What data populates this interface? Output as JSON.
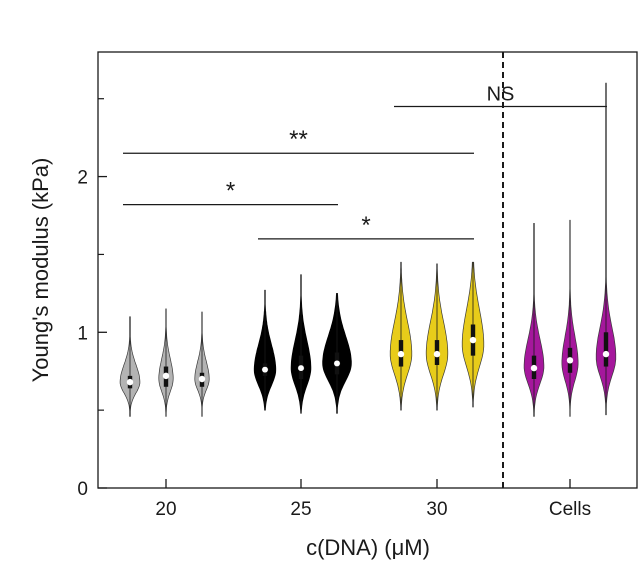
{
  "chart_data": {
    "type": "violin",
    "xlabel": "c(DNA) (μM)",
    "ylabel": "Young's modulus (kPa)",
    "ylim": [
      0,
      2.8
    ],
    "yticks_major": [
      0,
      1,
      2
    ],
    "yticks_minor": [
      0.5,
      1.5,
      2.5
    ],
    "groups": [
      {
        "label": "20",
        "color": "#b3b3b3",
        "violins": [
          {
            "median": 0.68,
            "q1": 0.64,
            "q3": 0.72,
            "min": 0.46,
            "max": 1.1,
            "mode": 0.68,
            "spread": 0.07,
            "width": 0.55
          },
          {
            "median": 0.72,
            "q1": 0.65,
            "q3": 0.78,
            "min": 0.46,
            "max": 1.15,
            "mode": 0.7,
            "spread": 0.08,
            "width": 0.4
          },
          {
            "median": 0.7,
            "q1": 0.65,
            "q3": 0.74,
            "min": 0.46,
            "max": 1.13,
            "mode": 0.7,
            "spread": 0.07,
            "width": 0.4
          }
        ]
      },
      {
        "label": "25",
        "color": "#000000",
        "violins": [
          {
            "median": 0.76,
            "q1": 0.72,
            "q3": 0.8,
            "min": 0.5,
            "max": 1.27,
            "mode": 0.76,
            "spread": 0.1,
            "width": 0.6
          },
          {
            "median": 0.77,
            "q1": 0.7,
            "q3": 0.85,
            "min": 0.48,
            "max": 1.37,
            "mode": 0.77,
            "spread": 0.11,
            "width": 0.55
          },
          {
            "median": 0.8,
            "q1": 0.73,
            "q3": 0.87,
            "min": 0.48,
            "max": 1.25,
            "mode": 0.8,
            "spread": 0.11,
            "width": 0.8
          }
        ]
      },
      {
        "label": "30",
        "color": "#e8cc1a",
        "violins": [
          {
            "median": 0.86,
            "q1": 0.78,
            "q3": 0.95,
            "min": 0.5,
            "max": 1.45,
            "mode": 0.86,
            "spread": 0.13,
            "width": 0.6
          },
          {
            "median": 0.86,
            "q1": 0.79,
            "q3": 0.95,
            "min": 0.5,
            "max": 1.44,
            "mode": 0.86,
            "spread": 0.13,
            "width": 0.6
          },
          {
            "median": 0.95,
            "q1": 0.85,
            "q3": 1.05,
            "min": 0.52,
            "max": 1.45,
            "mode": 0.92,
            "spread": 0.14,
            "width": 0.6
          }
        ]
      },
      {
        "label": "Cells",
        "color": "#a5179c",
        "violins": [
          {
            "median": 0.77,
            "q1": 0.7,
            "q3": 0.85,
            "min": 0.46,
            "max": 1.7,
            "mode": 0.78,
            "spread": 0.11,
            "width": 0.55
          },
          {
            "median": 0.82,
            "q1": 0.74,
            "q3": 0.9,
            "min": 0.46,
            "max": 1.72,
            "mode": 0.8,
            "spread": 0.11,
            "width": 0.45
          },
          {
            "median": 0.86,
            "q1": 0.78,
            "q3": 1.0,
            "min": 0.47,
            "max": 2.6,
            "mode": 0.84,
            "spread": 0.12,
            "width": 0.55
          }
        ]
      }
    ],
    "annotations": [
      {
        "text": "NS",
        "x_from": [
          2,
          0
        ],
        "x_to": [
          3,
          2
        ],
        "y": 2.45
      },
      {
        "text": "**",
        "x_from": [
          0,
          0
        ],
        "x_to": [
          2,
          2
        ],
        "y": 2.15
      },
      {
        "text": "*",
        "x_from": [
          0,
          0
        ],
        "x_to": [
          1,
          2
        ],
        "y": 1.82
      },
      {
        "text": "*",
        "x_from": [
          1,
          0
        ],
        "x_to": [
          2,
          2
        ],
        "y": 1.6
      }
    ],
    "separator": "dashed line between 30 and Cells"
  }
}
